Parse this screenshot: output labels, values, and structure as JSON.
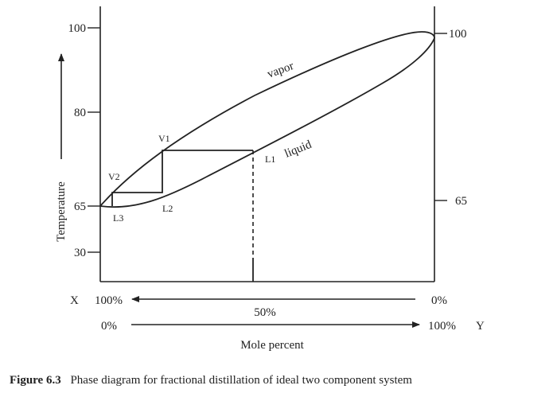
{
  "figure": {
    "caption_number": "Figure 6.3",
    "caption_text": "Phase diagram for fractional distillation of ideal two component system",
    "x_axis_label": "Mole percent",
    "y_axis_label": "Temperature",
    "left_ticks": [
      "100",
      "80",
      "65",
      "30"
    ],
    "right_ticks": [
      "100",
      "65"
    ],
    "curve_labels": {
      "vapor": "vapor",
      "liquid": "liquid"
    },
    "point_labels": {
      "v1": "V1",
      "v2": "V2",
      "l1": "L1",
      "l2": "L2",
      "l3": "L3"
    },
    "x_scale": {
      "name": "X",
      "start": "100%",
      "end": "0%"
    },
    "mid_label": "50%",
    "y_scale": {
      "start": "0%",
      "end": "100%",
      "name": "Y"
    }
  }
}
